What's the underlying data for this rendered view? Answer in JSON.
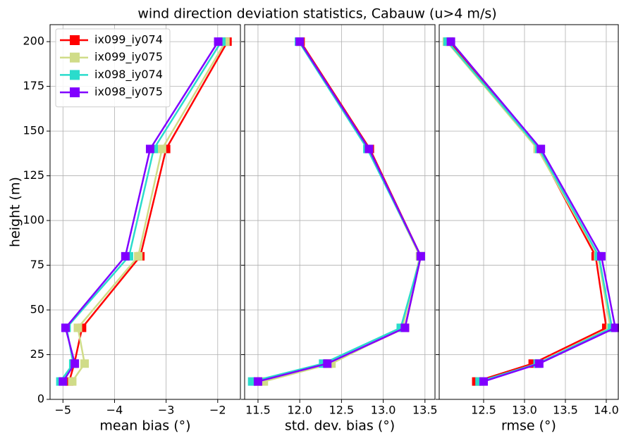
{
  "title": "wind direction deviation statistics, Cabauw (u>4 m/s)",
  "chart_data": [
    {
      "type": "line",
      "xlabel": "mean bias (°)",
      "ylabel": "height (m)",
      "grid": true,
      "legend": "upper left",
      "xlim": [
        -5.25,
        -1.56
      ],
      "ylim": [
        0,
        209.5
      ],
      "xticks": [
        {
          "value": -5,
          "label": "−5"
        },
        {
          "value": -4,
          "label": "−4"
        },
        {
          "value": -3,
          "label": "−3"
        },
        {
          "value": -2,
          "label": "−2"
        }
      ],
      "yticks": [
        0,
        25,
        50,
        75,
        100,
        125,
        150,
        175,
        200
      ],
      "y": [
        10,
        20,
        40,
        80,
        140,
        200
      ],
      "series": [
        {
          "name": "ix099_iy074",
          "color": "#ff0000",
          "values": [
            -4.88,
            -4.78,
            -4.63,
            -3.5,
            -3.0,
            -1.81
          ]
        },
        {
          "name": "ix099_iy075",
          "color": "#d0dc88",
          "values": [
            -4.82,
            -4.58,
            -4.71,
            -3.54,
            -3.08,
            -1.85
          ]
        },
        {
          "name": "ix098_iy074",
          "color": "#2adccc",
          "values": [
            -5.05,
            -4.8,
            -4.93,
            -3.72,
            -3.24,
            -1.93
          ]
        },
        {
          "name": "ix098_iy075",
          "color": "#8000ff",
          "values": [
            -5.0,
            -4.77,
            -4.95,
            -3.79,
            -3.31,
            -1.99
          ]
        }
      ]
    },
    {
      "type": "line",
      "xlabel": "std. dev. bias (°)",
      "grid": true,
      "xlim": [
        11.34,
        13.62
      ],
      "ylim": [
        0,
        209.5
      ],
      "xticks": [
        11.5,
        {
          "value": 12,
          "label": "12.0"
        },
        12.5,
        {
          "value": 13,
          "label": "13.0"
        },
        13.5
      ],
      "yticks": [
        0,
        25,
        50,
        75,
        100,
        125,
        150,
        175,
        200
      ],
      "y": [
        10,
        20,
        40,
        80,
        140,
        200
      ],
      "series": [
        {
          "color": "#ff0000",
          "values": [
            11.5,
            12.34,
            13.26,
            13.45,
            12.84,
            12.01
          ]
        },
        {
          "color": "#d0dc88",
          "values": [
            11.57,
            12.38,
            13.23,
            13.44,
            12.82,
            12.0
          ]
        },
        {
          "color": "#2adccc",
          "values": [
            11.43,
            12.28,
            13.21,
            13.45,
            12.81,
            11.99
          ]
        },
        {
          "color": "#8000ff",
          "values": [
            11.5,
            12.33,
            13.26,
            13.45,
            12.83,
            12.0
          ]
        }
      ]
    },
    {
      "type": "line",
      "xlabel": "rmse (°)",
      "grid": true,
      "xlim": [
        11.957,
        14.147
      ],
      "ylim": [
        0,
        209.5
      ],
      "xticks": [
        12.5,
        {
          "value": 13,
          "label": "13.0"
        },
        13.5,
        {
          "value": 14,
          "label": "14.0"
        }
      ],
      "yticks": [
        0,
        25,
        50,
        75,
        100,
        125,
        150,
        175,
        200
      ],
      "y": [
        10,
        20,
        40,
        80,
        140,
        200
      ],
      "series": [
        {
          "color": "#ff0000",
          "values": [
            12.41,
            13.1,
            14.0,
            13.87,
            13.17,
            12.08
          ]
        },
        {
          "color": "#d0dc88",
          "values": [
            12.47,
            13.16,
            14.05,
            13.9,
            13.16,
            12.05
          ]
        },
        {
          "color": "#2adccc",
          "values": [
            12.45,
            13.16,
            14.07,
            13.91,
            13.18,
            12.06
          ]
        },
        {
          "color": "#8000ff",
          "values": [
            12.5,
            13.18,
            14.11,
            13.94,
            13.2,
            12.1
          ]
        }
      ]
    }
  ]
}
